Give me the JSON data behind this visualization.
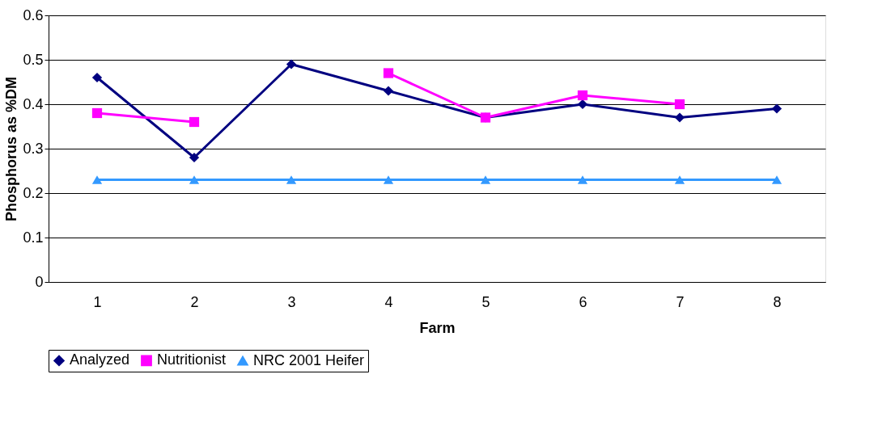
{
  "chart_data": {
    "type": "line",
    "xlabel": "Farm",
    "ylabel": "Phosphorus as %DM",
    "categories": [
      "1",
      "2",
      "3",
      "4",
      "5",
      "6",
      "7",
      "8"
    ],
    "series": [
      {
        "name": "Analyzed",
        "color": "#000080",
        "marker": "diamond",
        "values": [
          0.46,
          0.28,
          0.49,
          0.43,
          0.37,
          0.4,
          0.37,
          0.39
        ]
      },
      {
        "name": "Nutritionist",
        "color": "#ff00ff",
        "marker": "square",
        "values": [
          0.38,
          0.36,
          null,
          0.47,
          0.37,
          0.42,
          0.4,
          null
        ]
      },
      {
        "name": "NRC 2001 Heifer",
        "color": "#3399ff",
        "marker": "triangle",
        "values": [
          0.23,
          0.23,
          0.23,
          0.23,
          0.23,
          0.23,
          0.23,
          0.23
        ]
      }
    ],
    "ylim": [
      0,
      0.6
    ],
    "yticks": [
      0,
      0.1,
      0.2,
      0.3,
      0.4,
      0.5,
      0.6
    ],
    "grid": "y",
    "legend": "bottom",
    "line_style": "solid"
  }
}
